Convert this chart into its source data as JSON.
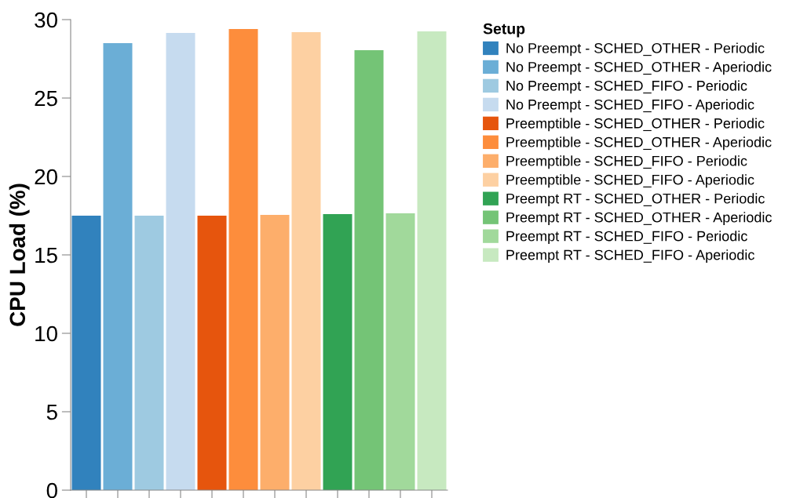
{
  "chart_data": {
    "type": "bar",
    "ylabel": "CPU Load (%)",
    "legend_title": "Setup",
    "legend": "right",
    "grid": false,
    "tick_labels": "y",
    "categories": [
      null,
      null,
      null,
      null,
      null,
      null,
      null,
      null,
      null,
      null,
      null,
      null
    ],
    "ylim": [
      0,
      30
    ],
    "yticks": [
      0,
      5,
      10,
      15,
      20,
      25,
      30
    ],
    "series": [
      {
        "name": "No Preempt - SCHED_OTHER - Periodic",
        "color": "#3182bd",
        "values": [
          17.5,
          null,
          null,
          null,
          null,
          null,
          null,
          null,
          null,
          null,
          null,
          null
        ]
      },
      {
        "name": "No Preempt - SCHED_OTHER - Aperiodic",
        "color": "#6baed6",
        "values": [
          null,
          28.5,
          null,
          null,
          null,
          null,
          null,
          null,
          null,
          null,
          null,
          null
        ]
      },
      {
        "name": "No Preempt - SCHED_FIFO - Periodic",
        "color": "#9ecae1",
        "values": [
          null,
          null,
          17.5,
          null,
          null,
          null,
          null,
          null,
          null,
          null,
          null,
          null
        ]
      },
      {
        "name": "No Preempt - SCHED_FIFO - Aperiodic",
        "color": "#c6dbef",
        "values": [
          null,
          null,
          null,
          29.15,
          null,
          null,
          null,
          null,
          null,
          null,
          null,
          null
        ]
      },
      {
        "name": "Preemptible - SCHED_OTHER - Periodic",
        "color": "#e6550d",
        "values": [
          null,
          null,
          null,
          null,
          17.5,
          null,
          null,
          null,
          null,
          null,
          null,
          null
        ]
      },
      {
        "name": "Preemptible - SCHED_OTHER - Aperiodic",
        "color": "#fd8d3c",
        "values": [
          null,
          null,
          null,
          null,
          null,
          29.4,
          null,
          null,
          null,
          null,
          null,
          null
        ]
      },
      {
        "name": "Preemptible - SCHED_FIFO - Periodic",
        "color": "#fdae6b",
        "values": [
          null,
          null,
          null,
          null,
          null,
          null,
          17.55,
          null,
          null,
          null,
          null,
          null
        ]
      },
      {
        "name": "Preemptible - SCHED_FIFO - Aperiodic",
        "color": "#fdd0a2",
        "values": [
          null,
          null,
          null,
          null,
          null,
          null,
          null,
          29.2,
          null,
          null,
          null,
          null
        ]
      },
      {
        "name": "Preempt RT - SCHED_OTHER - Periodic",
        "color": "#31a354",
        "values": [
          null,
          null,
          null,
          null,
          null,
          null,
          null,
          null,
          17.6,
          null,
          null,
          null
        ]
      },
      {
        "name": "Preempt RT - SCHED_OTHER - Aperiodic",
        "color": "#74c476",
        "values": [
          null,
          null,
          null,
          null,
          null,
          null,
          null,
          null,
          null,
          28.05,
          null,
          null
        ]
      },
      {
        "name": "Preempt RT - SCHED_FIFO - Periodic",
        "color": "#a1d99b",
        "values": [
          null,
          null,
          null,
          null,
          null,
          null,
          null,
          null,
          null,
          null,
          17.65,
          null
        ]
      },
      {
        "name": "Preempt RT - SCHED_FIFO - Aperiodic",
        "color": "#c7e9c0",
        "values": [
          null,
          null,
          null,
          null,
          null,
          null,
          null,
          null,
          null,
          null,
          null,
          29.25
        ]
      }
    ]
  }
}
